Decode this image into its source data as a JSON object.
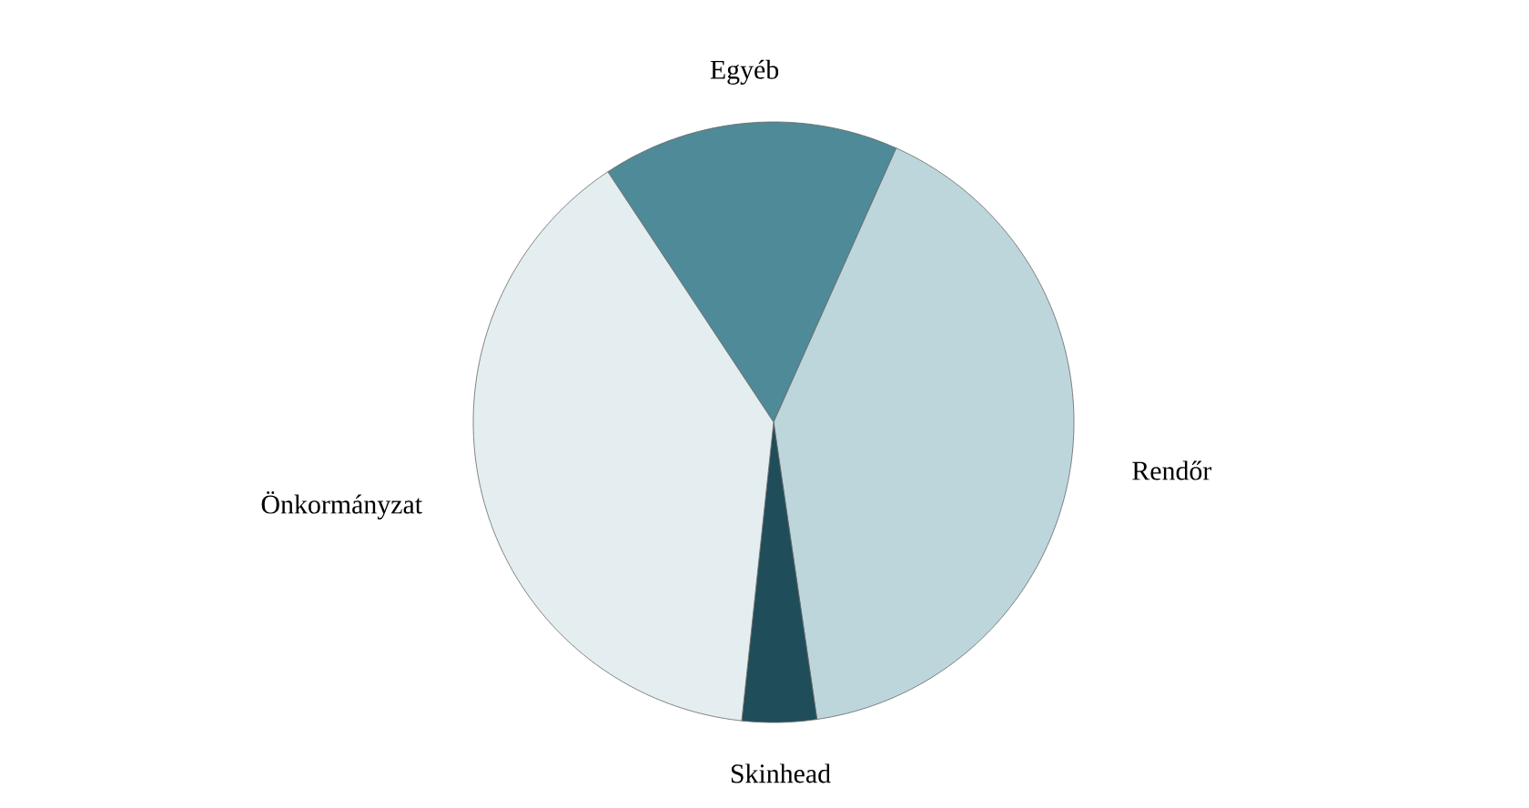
{
  "chart_data": {
    "type": "pie",
    "categories": [
      "Egyéb",
      "Rendőr",
      "Skinhead",
      "Önkormányzat"
    ],
    "values": [
      16,
      41,
      4,
      39
    ],
    "colors": [
      "#4f8a98",
      "#bcd6dc",
      "#1f4d5a",
      "#e4eef0"
    ]
  }
}
